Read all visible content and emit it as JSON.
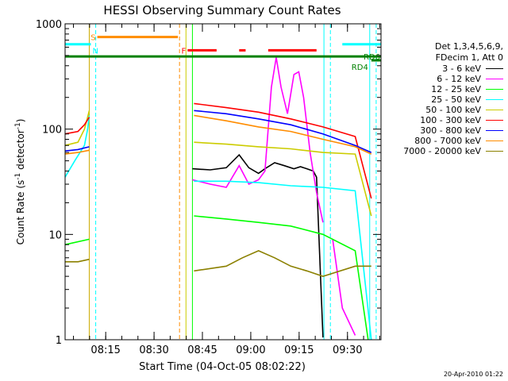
{
  "chart_data": {
    "type": "line",
    "title": "HESSI Observing Summary Count Rates",
    "xlabel": "Start Time (04-Oct-05 08:02:22)",
    "ylabel": "Count Rate (s⁻¹ detector⁻¹)",
    "yscale": "log",
    "ylim": [
      1,
      1000
    ],
    "xlim_minutes": [
      0,
      98
    ],
    "y_ticks": [
      {
        "value": 1,
        "label": "1"
      },
      {
        "value": 10,
        "label": "10"
      },
      {
        "value": 100,
        "label": "100"
      },
      {
        "value": 1000,
        "label": "1000"
      }
    ],
    "x_ticks": [
      {
        "minute": 12.6,
        "label": "08:15"
      },
      {
        "minute": 27.6,
        "label": "08:30"
      },
      {
        "minute": 42.6,
        "label": "08:45"
      },
      {
        "minute": 57.6,
        "label": "09:00"
      },
      {
        "minute": 72.6,
        "label": "09:15"
      },
      {
        "minute": 87.6,
        "label": "09:30"
      }
    ],
    "legend_header": [
      "Det 1,3,4,5,6,9,",
      "FDecim 1, Att 0"
    ],
    "series": [
      {
        "name": "3 - 6 keV",
        "color": "#000000",
        "segments": [
          {
            "x": [
              39.5,
              45,
              50,
              54,
              57,
              60,
              62,
              65,
              68,
              71,
              73,
              75,
              77,
              78,
              80
            ],
            "y": [
              42,
              41,
              43,
              57,
              43,
              38,
              42,
              48,
              45,
              42,
              44,
              42,
              40,
              35,
              1.05
            ]
          }
        ]
      },
      {
        "name": "6 - 12 keV",
        "color": "#ff00ff",
        "segments": [
          {
            "x": [
              39.5,
              45,
              50,
              54,
              57,
              60,
              62,
              64,
              65.5,
              67,
              69,
              71,
              72.5,
              74,
              76,
              78,
              80
            ],
            "y": [
              33,
              30,
              28,
              45,
              30,
              33,
              40,
              250,
              480,
              250,
              140,
              330,
              350,
              200,
              60,
              25,
              13
            ]
          },
          {
            "x": [
              83,
              86,
              90
            ],
            "y": [
              9,
              2,
              1.1
            ]
          }
        ]
      },
      {
        "name": "12 - 25 keV",
        "color": "#00ff00",
        "segments": [
          {
            "x": [
              0,
              7.5
            ],
            "y": [
              8,
              9
            ]
          },
          {
            "x": [
              40,
              50,
              60,
              70,
              80,
              90,
              94
            ],
            "y": [
              15,
              14,
              13,
              12,
              10,
              7,
              1
            ]
          }
        ]
      },
      {
        "name": "25 - 50 keV",
        "color": "#00ffff",
        "segments": [
          {
            "x": [
              0,
              3,
              6,
              7,
              7.5
            ],
            "y": [
              35,
              50,
              70,
              100,
              135
            ]
          },
          {
            "x": [
              40,
              50,
              60,
              70,
              80,
              90,
              95
            ],
            "y": [
              32,
              32,
              31,
              29,
              28,
              26,
              1
            ]
          }
        ]
      },
      {
        "name": "50 - 100 keV",
        "color": "#cccc00",
        "segments": [
          {
            "x": [
              0,
              4,
              6,
              7.5
            ],
            "y": [
              70,
              75,
              100,
              150
            ]
          },
          {
            "x": [
              40,
              50,
              60,
              70,
              80,
              90,
              95
            ],
            "y": [
              75,
              72,
              68,
              65,
              60,
              58,
              15
            ]
          }
        ]
      },
      {
        "name": "100 - 300 keV",
        "color": "#ff0000",
        "segments": [
          {
            "x": [
              0,
              4,
              6,
              7.5
            ],
            "y": [
              90,
              95,
              110,
              130
            ]
          },
          {
            "x": [
              40,
              50,
              60,
              70,
              80,
              90,
              95
            ],
            "y": [
              175,
              160,
              145,
              125,
              105,
              85,
              22
            ]
          }
        ]
      },
      {
        "name": "300 - 800 keV",
        "color": "#0000ff",
        "segments": [
          {
            "x": [
              0,
              4,
              7.5
            ],
            "y": [
              62,
              64,
              68
            ]
          },
          {
            "x": [
              40,
              50,
              60,
              70,
              80,
              90,
              95
            ],
            "y": [
              150,
              140,
              125,
              110,
              90,
              70,
              60
            ]
          }
        ]
      },
      {
        "name": "800 - 7000 keV",
        "color": "#ff8c00",
        "segments": [
          {
            "x": [
              0,
              4,
              7.5
            ],
            "y": [
              58,
              60,
              63
            ]
          },
          {
            "x": [
              40,
              50,
              60,
              70,
              80,
              90,
              95
            ],
            "y": [
              135,
              120,
              105,
              95,
              80,
              68,
              58
            ]
          }
        ]
      },
      {
        "name": "7000 - 20000 keV",
        "color": "#8b8000",
        "segments": [
          {
            "x": [
              0,
              4,
              7.5
            ],
            "y": [
              5.5,
              5.5,
              5.8
            ]
          },
          {
            "x": [
              40,
              50,
              55,
              60,
              65,
              70,
              75,
              80,
              90,
              95
            ],
            "y": [
              4.5,
              5,
              6,
              7,
              6,
              5,
              4.5,
              4,
              5,
              5
            ]
          }
        ]
      }
    ],
    "status_bars": [
      {
        "label": "S",
        "color": "#ff8c00",
        "y_value": 750,
        "ranges": [
          [
            10,
            35
          ]
        ]
      },
      {
        "label": "F",
        "color": "#ff0000",
        "y_value": 560,
        "ranges": [
          [
            38,
            47
          ],
          [
            54,
            56
          ],
          [
            63,
            78
          ]
        ]
      },
      {
        "label": "N",
        "color": "#00ffff",
        "y_value": 640,
        "ranges": [
          [
            0,
            8
          ],
          [
            86,
            98
          ]
        ]
      },
      {
        "label": "RD6",
        "color": "#008000",
        "y_value": 490,
        "ranges": [
          [
            0,
            98
          ]
        ]
      },
      {
        "label": "RD4",
        "color": "#008000",
        "y_value": 450,
        "ranges": [
          [
            95,
            98
          ]
        ]
      }
    ],
    "vlines": [
      {
        "minute": 7.5,
        "color": "#ccaa00",
        "style": "solid"
      },
      {
        "minute": 9.5,
        "color": "#00ffff",
        "style": "dashed"
      },
      {
        "minute": 35.5,
        "color": "#ff8c00",
        "style": "dashed"
      },
      {
        "minute": 37.5,
        "color": "#cccc00",
        "style": "solid"
      },
      {
        "minute": 39.5,
        "color": "#00ff00",
        "style": "solid"
      },
      {
        "minute": 80.3,
        "color": "#00ffff",
        "style": "solid"
      },
      {
        "minute": 82.3,
        "color": "#00ffff",
        "style": "dashed"
      },
      {
        "minute": 94.5,
        "color": "#00ffff",
        "style": "solid"
      },
      {
        "minute": 96.5,
        "color": "#00ffff",
        "style": "dashed"
      }
    ]
  },
  "footer_date": "20-Apr-2010 01:22"
}
